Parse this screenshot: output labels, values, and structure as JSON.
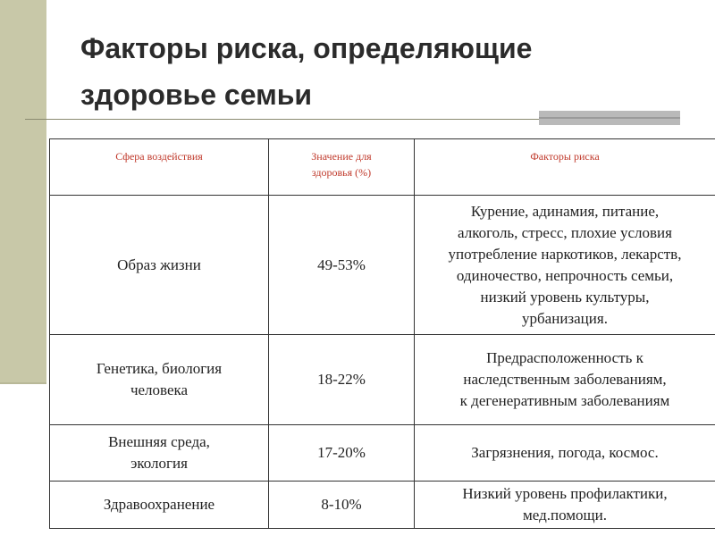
{
  "slide": {
    "title": "Факторы риска, определяющие\nздоровье семьи"
  },
  "table": {
    "headers": {
      "sphere": "Сфера воздействия",
      "value": "Значение для\nздоровья (%)",
      "factors": "Факторы риска"
    },
    "rows": [
      {
        "sphere": "Образ жизни",
        "value": "49-53%",
        "factors": "Курение, адинамия, питание,\nалкоголь, стресс, плохие условия\nупотребление наркотиков, лекарств,\nодиночество, непрочность семьи,\nнизкий уровень культуры,\nурбанизация."
      },
      {
        "sphere": "Генетика, биология\nчеловека",
        "value": "18-22%",
        "factors": "Предрасположенность к\nнаследственным заболеваниям,\nк дегенеративным заболеваниям"
      },
      {
        "sphere": "Внешняя среда,\nэкология",
        "value": "17-20%",
        "factors": "Загрязнения, погода, космос."
      },
      {
        "sphere": "Здравоохранение",
        "value": "8-10%",
        "factors": "Низкий уровень профилактики,\nмед.помощи."
      }
    ]
  }
}
